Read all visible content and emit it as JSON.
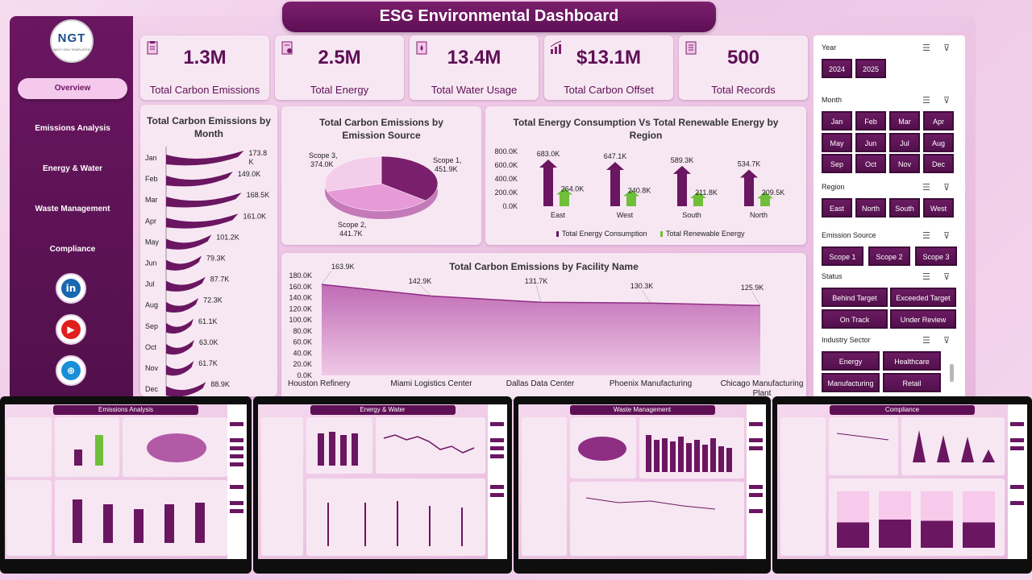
{
  "title": "ESG Environmental Dashboard",
  "logo": {
    "text": "NGT",
    "subtext": "NEXT GEN TEMPLATES"
  },
  "nav": [
    "Overview",
    "Emissions Analysis",
    "Energy & Water",
    "Waste Management",
    "Compliance"
  ],
  "social": [
    "linkedin-icon",
    "youtube-icon",
    "web-icon"
  ],
  "kpis": [
    {
      "value": "1.3M",
      "label": "Total Carbon Emissions",
      "icon": "clipboard-icon"
    },
    {
      "value": "2.5M",
      "label": "Total Energy",
      "icon": "document-icon"
    },
    {
      "value": "13.4M",
      "label": "Total Water Usage",
      "icon": "water-doc-icon"
    },
    {
      "value": "$13.1M",
      "label": "Total Carbon Offset",
      "icon": "growth-chart-icon"
    },
    {
      "value": "500",
      "label": "Total Records",
      "icon": "checklist-icon"
    }
  ],
  "monthly": {
    "title": "Total Carbon Emissions by Month",
    "months": [
      "Jan",
      "Feb",
      "Mar",
      "Apr",
      "May",
      "Jun",
      "Jul",
      "Aug",
      "Sep",
      "Oct",
      "Nov",
      "Dec"
    ],
    "labels": [
      "173.8 K",
      "149.0K",
      "168.5K",
      "161.0K",
      "101.2K",
      "79.3K",
      "87.7K",
      "72.3K",
      "61.1K",
      "63.0K",
      "61.7K",
      "88.9K"
    ],
    "values": [
      173.8,
      149.0,
      168.5,
      161.0,
      101.2,
      79.3,
      87.7,
      72.3,
      61.1,
      63.0,
      61.7,
      88.9
    ]
  },
  "source": {
    "title": "Total Carbon Emissions by Emission Source",
    "slices": [
      {
        "name": "Scope 1",
        "value": 451.9,
        "label": "Scope 1, 451.9K"
      },
      {
        "name": "Scope 2",
        "value": 441.7,
        "label": "Scope 2, 441.7K"
      },
      {
        "name": "Scope 3",
        "value": 374.0,
        "label": "Scope 3, 374.0K"
      }
    ]
  },
  "region": {
    "title": "Total Energy Consumption Vs Total Renewable Energy by Region",
    "regions": [
      "East",
      "West",
      "South",
      "North"
    ],
    "consumption": [
      683.0,
      647.1,
      589.3,
      534.7
    ],
    "consumption_labels": [
      "683.0K",
      "647.1K",
      "589.3K",
      "534.7K"
    ],
    "renewable": [
      264.0,
      240.8,
      211.8,
      209.5
    ],
    "renewable_labels": [
      "264.0K",
      "240.8K",
      "211.8K",
      "209.5K"
    ],
    "yticks": [
      "800.0K",
      "600.0K",
      "400.0K",
      "200.0K",
      "0.0K"
    ],
    "legend": [
      "Total Energy Consumption",
      "Total Renewable Energy"
    ]
  },
  "facility": {
    "title": "Total Carbon Emissions by Facility Name",
    "facilities": [
      "Houston Refinery",
      "Miami Logistics Center",
      "Dallas Data Center",
      "Phoenix Manufacturing",
      "Chicago Manufacturing Plant"
    ],
    "values": [
      163.9,
      142.9,
      131.7,
      130.3,
      125.9
    ],
    "labels": [
      "163.9K",
      "142.9K",
      "131.7K",
      "130.3K",
      "125.9K"
    ],
    "yticks": [
      "180.0K",
      "160.0K",
      "140.0K",
      "120.0K",
      "100.0K",
      "80.0K",
      "60.0K",
      "40.0K",
      "20.0K",
      "0.0K"
    ]
  },
  "filters": {
    "year": {
      "label": "Year",
      "options": [
        "2024",
        "2025"
      ]
    },
    "month": {
      "label": "Month",
      "options": [
        "Jan",
        "Feb",
        "Mar",
        "Apr",
        "May",
        "Jun",
        "Jul",
        "Aug",
        "Sep",
        "Oct",
        "Nov",
        "Dec"
      ]
    },
    "region": {
      "label": "Region",
      "options": [
        "East",
        "North",
        "South",
        "West"
      ]
    },
    "emission_source": {
      "label": "Emission Source",
      "options": [
        "Scope 1",
        "Scope 2",
        "Scope 3"
      ]
    },
    "status": {
      "label": "Status",
      "options": [
        "Behind Target",
        "Exceeded Target",
        "On Track",
        "Under Review"
      ]
    },
    "industry": {
      "label": "Industry Sector",
      "options": [
        "Energy",
        "Healthcare",
        "Manufacturing",
        "Retail"
      ]
    }
  },
  "thumbnails": [
    "Emissions Analysis",
    "Energy & Water",
    "Waste Management",
    "Compliance"
  ],
  "colors": {
    "primary": "#5e0f55",
    "accent": "#7a1f6c",
    "renewable": "#6fbf3a",
    "background": "#f3d3ec"
  }
}
